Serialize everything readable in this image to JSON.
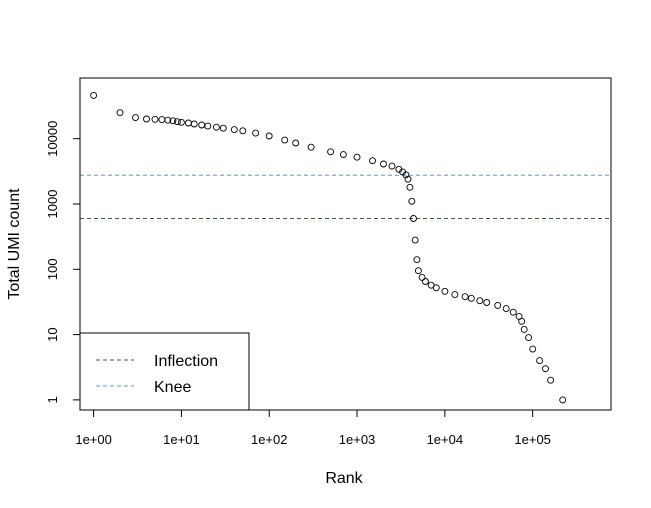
{
  "chart_data": {
    "type": "scatter",
    "title": "",
    "xlabel": "Rank",
    "ylabel": "Total UMI count",
    "x_scale": "log",
    "y_scale": "log",
    "xlim": [
      0.7,
      780000
    ],
    "ylim": [
      0.7,
      85000
    ],
    "x_ticks": [
      {
        "value": 1,
        "label": "1e+00"
      },
      {
        "value": 10,
        "label": "1e+01"
      },
      {
        "value": 100,
        "label": "1e+02"
      },
      {
        "value": 1000,
        "label": "1e+03"
      },
      {
        "value": 10000,
        "label": "1e+04"
      },
      {
        "value": 100000,
        "label": "1e+05"
      }
    ],
    "y_ticks": [
      {
        "value": 1,
        "label": "1"
      },
      {
        "value": 10,
        "label": "10"
      },
      {
        "value": 100,
        "label": "100"
      },
      {
        "value": 1000,
        "label": "1000"
      },
      {
        "value": 10000,
        "label": "10000"
      }
    ],
    "grid": false,
    "marker": "open-circle",
    "points": [
      [
        1,
        46000
      ],
      [
        2,
        25000
      ],
      [
        3,
        21000
      ],
      [
        4,
        20000
      ],
      [
        5,
        19800
      ],
      [
        6,
        19600
      ],
      [
        7,
        19200
      ],
      [
        8,
        18800
      ],
      [
        9,
        18200
      ],
      [
        10,
        17800
      ],
      [
        12,
        17400
      ],
      [
        14,
        16800
      ],
      [
        17,
        16200
      ],
      [
        20,
        15600
      ],
      [
        25,
        15000
      ],
      [
        30,
        14500
      ],
      [
        40,
        13800
      ],
      [
        50,
        13200
      ],
      [
        70,
        12200
      ],
      [
        100,
        11000
      ],
      [
        150,
        9500
      ],
      [
        200,
        8600
      ],
      [
        300,
        7400
      ],
      [
        500,
        6300
      ],
      [
        700,
        5700
      ],
      [
        1000,
        5200
      ],
      [
        1500,
        4600
      ],
      [
        2000,
        4100
      ],
      [
        2500,
        3800
      ],
      [
        3000,
        3400
      ],
      [
        3300,
        3100
      ],
      [
        3600,
        2800
      ],
      [
        3800,
        2400
      ],
      [
        4000,
        1800
      ],
      [
        4200,
        1100
      ],
      [
        4400,
        600
      ],
      [
        4600,
        280
      ],
      [
        4800,
        140
      ],
      [
        5000,
        95
      ],
      [
        5500,
        75
      ],
      [
        6000,
        65
      ],
      [
        7000,
        57
      ],
      [
        8000,
        52
      ],
      [
        10000,
        46
      ],
      [
        13000,
        41
      ],
      [
        17000,
        38
      ],
      [
        20000,
        36
      ],
      [
        25000,
        33
      ],
      [
        30000,
        31
      ],
      [
        40000,
        28
      ],
      [
        50000,
        25
      ],
      [
        60000,
        22
      ],
      [
        70000,
        19
      ],
      [
        75000,
        16
      ],
      [
        80000,
        12
      ],
      [
        90000,
        9
      ],
      [
        100000,
        6
      ],
      [
        120000,
        4
      ],
      [
        140000,
        3
      ],
      [
        160000,
        2
      ],
      [
        220000,
        1
      ]
    ],
    "hlines": [
      {
        "name": "Knee",
        "y": 2750,
        "color": "#6a96c6",
        "style": "dashed"
      },
      {
        "name": "Inflection",
        "y": 600,
        "color": "#2e6b2e",
        "style": "dashed"
      }
    ],
    "legend": {
      "position": "bottom-left",
      "entries": [
        {
          "label": "Inflection",
          "color": "#2e6b2e"
        },
        {
          "label": "Knee",
          "color": "#6a96c6"
        }
      ]
    }
  }
}
